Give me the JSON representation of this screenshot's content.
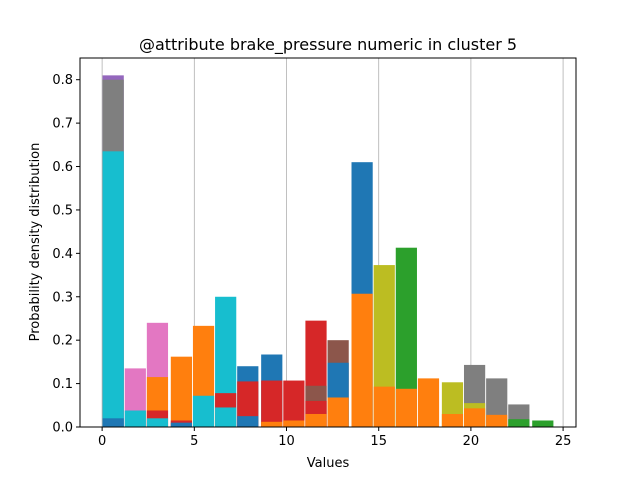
{
  "chart_data": {
    "type": "bar",
    "title": "@attribute brake_pressure numeric in cluster  5",
    "xlabel": "Values",
    "ylabel": "Probability density distribution",
    "xlim": [
      -1.2,
      25.7
    ],
    "ylim": [
      0,
      0.85
    ],
    "xticks": [
      0,
      5,
      10,
      15,
      20,
      25
    ],
    "yticks": [
      0.0,
      0.1,
      0.2,
      0.3,
      0.4,
      0.5,
      0.6,
      0.7,
      0.8
    ],
    "grid": "x-only",
    "legend": "none",
    "bar_width": 1.15,
    "colors": {
      "blue": "#1f77b4",
      "orange": "#ff7f0e",
      "green": "#2ca02c",
      "red": "#d62728",
      "purple": "#9467bd",
      "brown": "#8c564b",
      "pink": "#e377c2",
      "gray": "#7f7f7f",
      "olive": "#bcbd22",
      "cyan": "#17becf"
    },
    "bars": [
      {
        "x": 0.6,
        "value": 0.81,
        "color": "purple"
      },
      {
        "x": 0.6,
        "value": 0.8,
        "color": "gray"
      },
      {
        "x": 0.6,
        "value": 0.635,
        "color": "cyan"
      },
      {
        "x": 0.6,
        "value": 0.02,
        "color": "blue"
      },
      {
        "x": 1.8,
        "value": 0.135,
        "color": "pink"
      },
      {
        "x": 1.8,
        "value": 0.038,
        "color": "cyan"
      },
      {
        "x": 3.0,
        "value": 0.24,
        "color": "pink"
      },
      {
        "x": 3.0,
        "value": 0.115,
        "color": "orange"
      },
      {
        "x": 3.0,
        "value": 0.038,
        "color": "red"
      },
      {
        "x": 3.0,
        "value": 0.02,
        "color": "cyan"
      },
      {
        "x": 4.3,
        "value": 0.162,
        "color": "orange"
      },
      {
        "x": 4.3,
        "value": 0.015,
        "color": "red"
      },
      {
        "x": 4.3,
        "value": 0.01,
        "color": "blue"
      },
      {
        "x": 5.5,
        "value": 0.233,
        "color": "orange"
      },
      {
        "x": 5.5,
        "value": 0.072,
        "color": "cyan"
      },
      {
        "x": 6.7,
        "value": 0.3,
        "color": "cyan"
      },
      {
        "x": 6.7,
        "value": 0.078,
        "color": "red"
      },
      {
        "x": 6.7,
        "value": 0.045,
        "color": "cyan"
      },
      {
        "x": 7.9,
        "value": 0.14,
        "color": "blue"
      },
      {
        "x": 7.9,
        "value": 0.105,
        "color": "red"
      },
      {
        "x": 7.9,
        "value": 0.025,
        "color": "blue"
      },
      {
        "x": 9.2,
        "value": 0.167,
        "color": "blue"
      },
      {
        "x": 9.2,
        "value": 0.107,
        "color": "red"
      },
      {
        "x": 9.2,
        "value": 0.012,
        "color": "orange"
      },
      {
        "x": 10.4,
        "value": 0.107,
        "color": "red"
      },
      {
        "x": 10.4,
        "value": 0.015,
        "color": "orange"
      },
      {
        "x": 11.6,
        "value": 0.245,
        "color": "red"
      },
      {
        "x": 11.6,
        "value": 0.095,
        "color": "brown"
      },
      {
        "x": 11.6,
        "value": 0.06,
        "color": "red"
      },
      {
        "x": 11.6,
        "value": 0.03,
        "color": "orange"
      },
      {
        "x": 12.8,
        "value": 0.2,
        "color": "brown"
      },
      {
        "x": 12.8,
        "value": 0.148,
        "color": "blue"
      },
      {
        "x": 12.8,
        "value": 0.068,
        "color": "orange"
      },
      {
        "x": 14.1,
        "value": 0.61,
        "color": "blue"
      },
      {
        "x": 14.1,
        "value": 0.307,
        "color": "orange"
      },
      {
        "x": 15.3,
        "value": 0.373,
        "color": "olive"
      },
      {
        "x": 15.3,
        "value": 0.093,
        "color": "orange"
      },
      {
        "x": 16.5,
        "value": 0.413,
        "color": "green"
      },
      {
        "x": 16.5,
        "value": 0.088,
        "color": "orange"
      },
      {
        "x": 17.7,
        "value": 0.112,
        "color": "orange"
      },
      {
        "x": 19.0,
        "value": 0.103,
        "color": "olive"
      },
      {
        "x": 19.0,
        "value": 0.03,
        "color": "orange"
      },
      {
        "x": 20.2,
        "value": 0.143,
        "color": "gray"
      },
      {
        "x": 20.2,
        "value": 0.055,
        "color": "olive"
      },
      {
        "x": 20.2,
        "value": 0.043,
        "color": "orange"
      },
      {
        "x": 21.4,
        "value": 0.112,
        "color": "gray"
      },
      {
        "x": 21.4,
        "value": 0.028,
        "color": "orange"
      },
      {
        "x": 22.6,
        "value": 0.052,
        "color": "gray"
      },
      {
        "x": 22.6,
        "value": 0.018,
        "color": "green"
      },
      {
        "x": 23.9,
        "value": 0.015,
        "color": "green"
      }
    ]
  }
}
